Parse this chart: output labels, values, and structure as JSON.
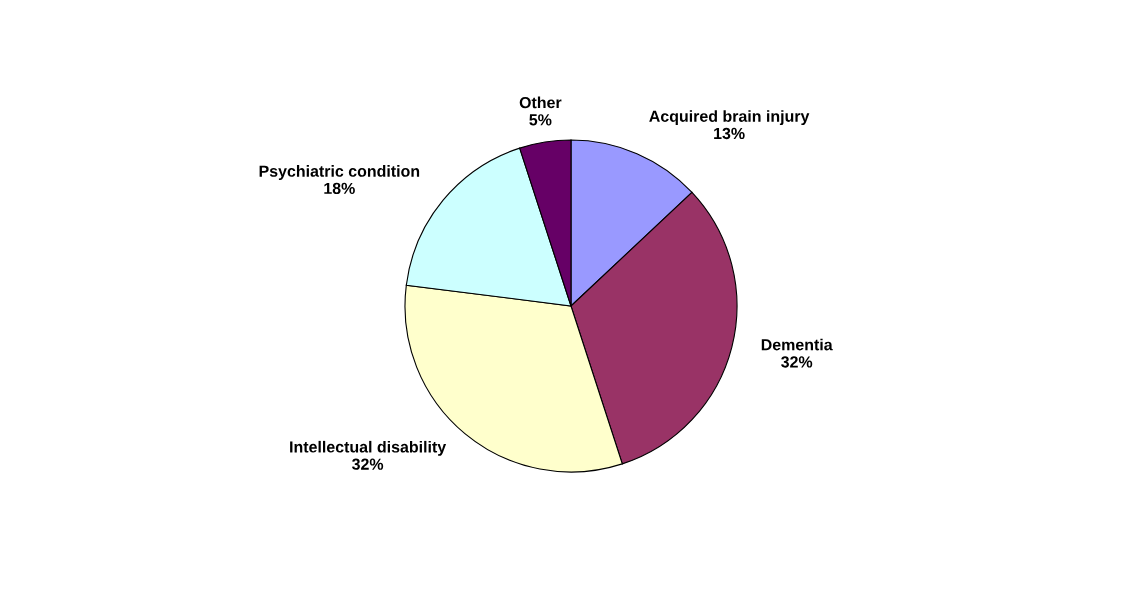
{
  "chart_data": {
    "type": "pie",
    "categories": [
      "Acquired brain injury",
      "Dementia",
      "Intellectual disability",
      "Psychiatric condition",
      "Other"
    ],
    "values": [
      13,
      32,
      32,
      18,
      5
    ],
    "value_labels": [
      "13%",
      "32%",
      "32%",
      "18%",
      "5%"
    ],
    "colors": [
      "#9999ff",
      "#993366",
      "#ffffcc",
      "#ccffff",
      "#660066"
    ],
    "legend": false
  }
}
